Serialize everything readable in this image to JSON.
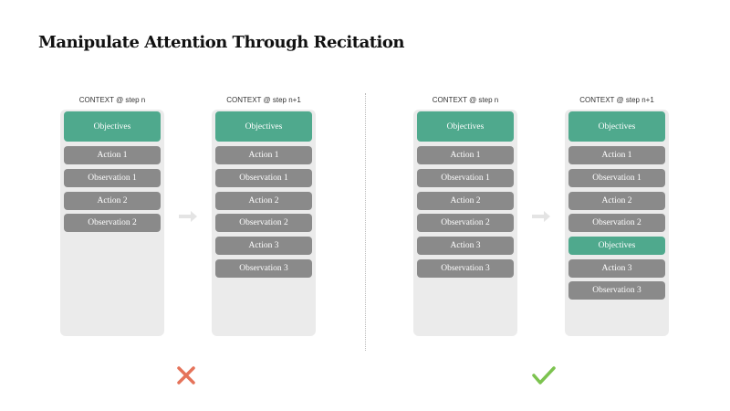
{
  "title": "Manipulate Attention Through Recitation",
  "colors": {
    "objective": "#4fa98d",
    "item": "#8a8a8a",
    "panel": "#ebebeb",
    "cross": "#e5735a",
    "check": "#7cc34f"
  },
  "panels": [
    {
      "label": "CONTEXT @ step n",
      "items": [
        "Objectives",
        "Action 1",
        "Observation 1",
        "Action 2",
        "Observation 2"
      ]
    },
    {
      "label": "CONTEXT @ step n+1",
      "items": [
        "Objectives",
        "Action 1",
        "Observation 1",
        "Action 2",
        "Observation 2",
        "Action 3",
        "Observation 3"
      ]
    },
    {
      "label": "CONTEXT @ step n",
      "items": [
        "Objectives",
        "Action 1",
        "Observation 1",
        "Action 2",
        "Observation 2",
        "Action 3",
        "Observation 3"
      ]
    },
    {
      "label": "CONTEXT @ step n+1",
      "items": [
        "Objectives",
        "Action 1",
        "Observation 1",
        "Action 2",
        "Observation 2",
        "Objectives",
        "Action 3",
        "Observation 3"
      ]
    }
  ],
  "icons": {
    "left_result": "cross-icon",
    "right_result": "check-icon",
    "transition": "arrow-right-icon"
  }
}
